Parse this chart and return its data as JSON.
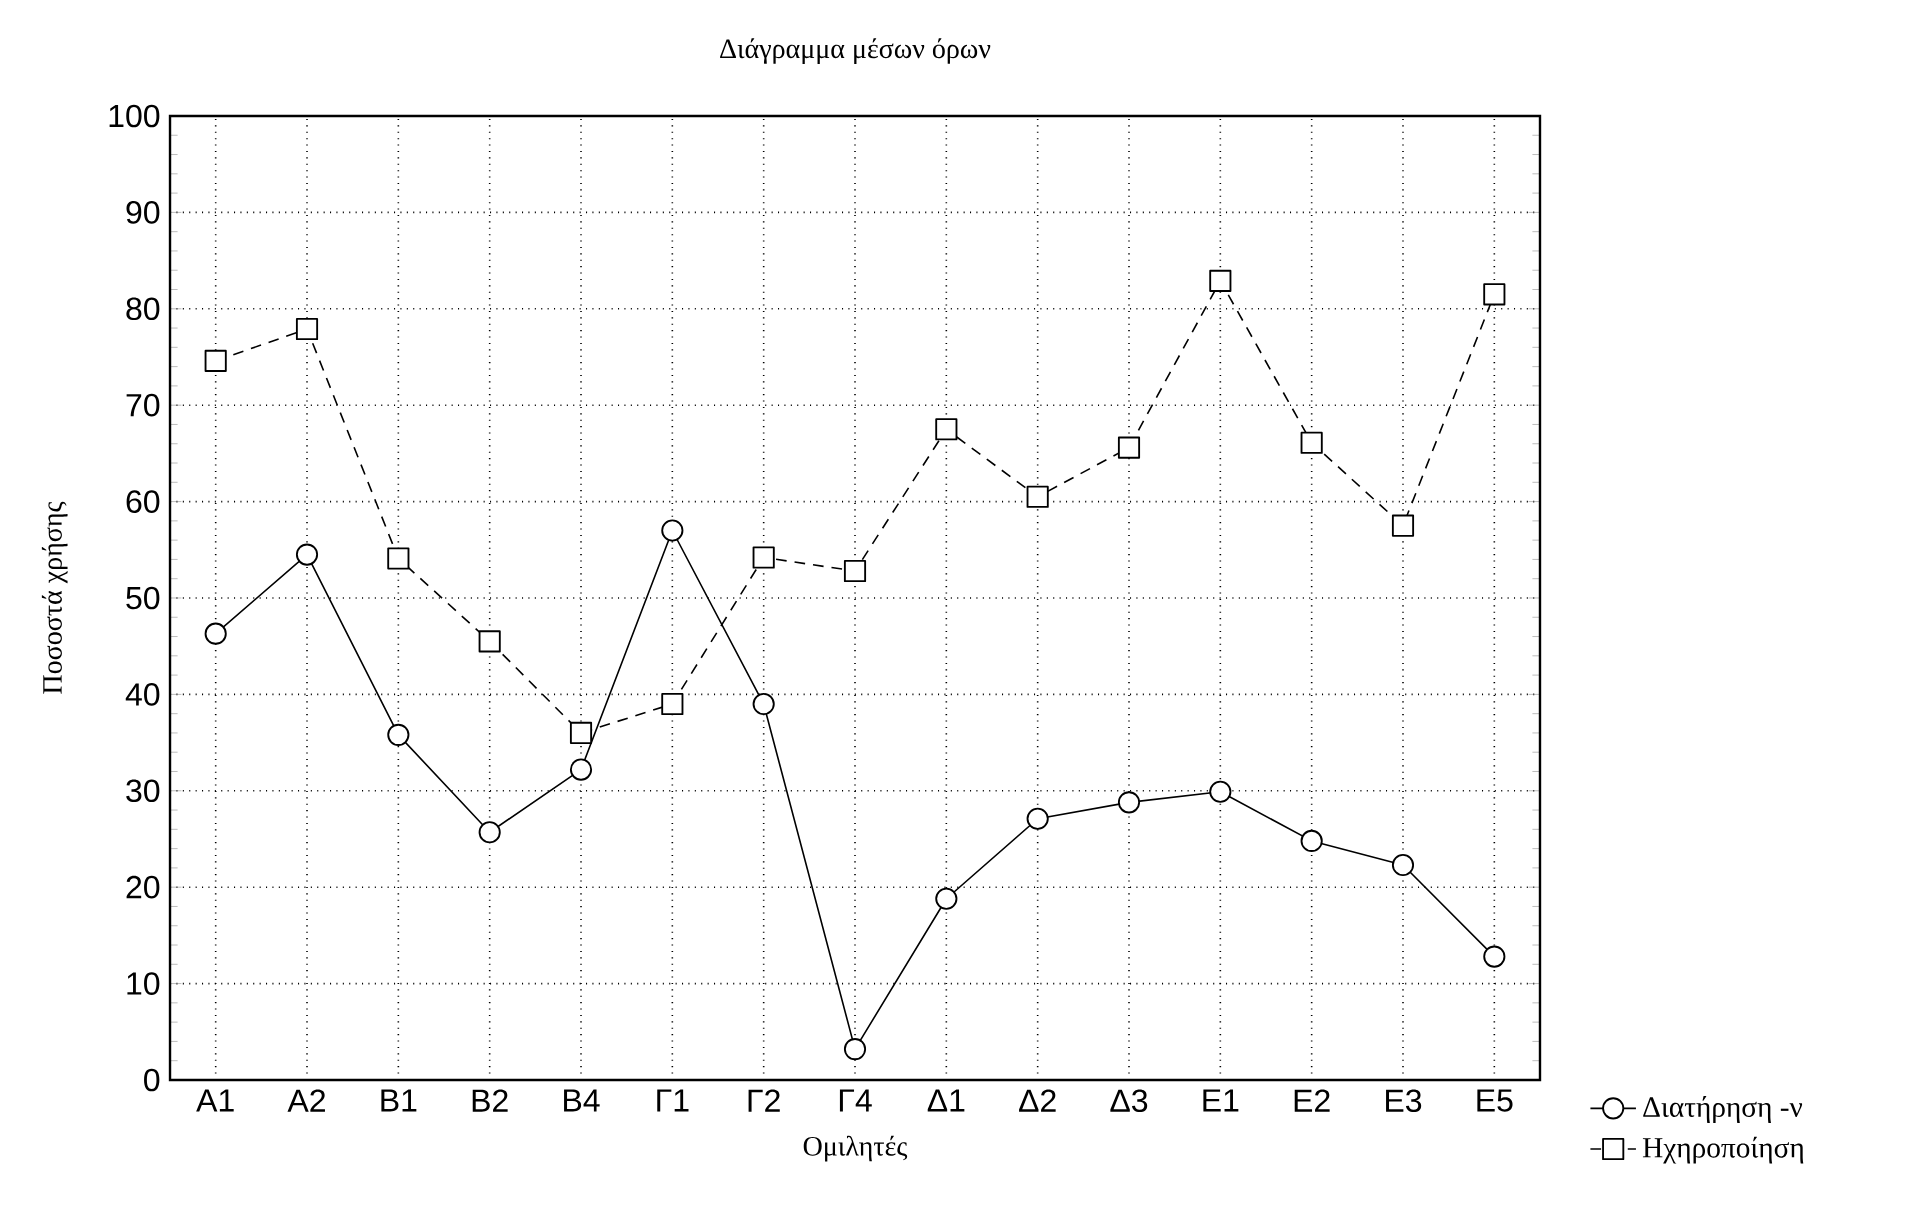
{
  "chart_data": {
    "type": "line",
    "title": "Διάγραμμα μέσων όρων",
    "xlabel": "Ομιλητές",
    "ylabel": "Ποσοστά χρήσης",
    "categories": [
      "A1",
      "A2",
      "B1",
      "B2",
      "B4",
      "Γ1",
      "Γ2",
      "Γ4",
      "Δ1",
      "Δ2",
      "Δ3",
      "E1",
      "E2",
      "E3",
      "E5"
    ],
    "series": [
      {
        "name": "Διατήρηση -ν",
        "color": "#000000",
        "marker": "circle",
        "line_style": "solid",
        "values": [
          46.3,
          54.5,
          35.8,
          25.7,
          32.2,
          57.0,
          39.0,
          3.2,
          18.8,
          27.1,
          28.8,
          29.9,
          24.8,
          22.3,
          12.8
        ]
      },
      {
        "name": "Ηχηροποίηση",
        "color": "#000000",
        "marker": "square",
        "line_style": "dashed",
        "values": [
          74.6,
          77.9,
          54.1,
          45.5,
          36.0,
          39.0,
          54.2,
          52.8,
          67.5,
          60.5,
          65.6,
          82.9,
          66.1,
          57.5,
          81.5
        ]
      }
    ],
    "ylim": [
      0,
      100
    ],
    "yticks": [
      0,
      10,
      20,
      30,
      40,
      50,
      60,
      70,
      80,
      90,
      100
    ],
    "grid": true,
    "legend": "bottom right"
  }
}
